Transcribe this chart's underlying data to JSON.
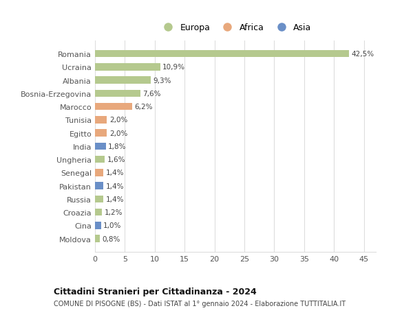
{
  "countries": [
    "Romania",
    "Ucraina",
    "Albania",
    "Bosnia-Erzegovina",
    "Marocco",
    "Tunisia",
    "Egitto",
    "India",
    "Ungheria",
    "Senegal",
    "Pakistan",
    "Russia",
    "Croazia",
    "Cina",
    "Moldova"
  ],
  "values": [
    42.5,
    10.9,
    9.3,
    7.6,
    6.2,
    2.0,
    2.0,
    1.8,
    1.6,
    1.4,
    1.4,
    1.4,
    1.2,
    1.0,
    0.8
  ],
  "labels": [
    "42,5%",
    "10,9%",
    "9,3%",
    "7,6%",
    "6,2%",
    "2,0%",
    "2,0%",
    "1,8%",
    "1,6%",
    "1,4%",
    "1,4%",
    "1,4%",
    "1,2%",
    "1,0%",
    "0,8%"
  ],
  "continents": [
    "Europa",
    "Europa",
    "Europa",
    "Europa",
    "Africa",
    "Africa",
    "Africa",
    "Asia",
    "Europa",
    "Africa",
    "Asia",
    "Europa",
    "Europa",
    "Asia",
    "Europa"
  ],
  "colors": {
    "Europa": "#b5c98e",
    "Africa": "#e8a87c",
    "Asia": "#6a8fc7"
  },
  "xlim": [
    0,
    47
  ],
  "xticks": [
    0,
    5,
    10,
    15,
    20,
    25,
    30,
    35,
    40,
    45
  ],
  "title": "Cittadini Stranieri per Cittadinanza - 2024",
  "subtitle": "COMUNE DI PISOGNE (BS) - Dati ISTAT al 1° gennaio 2024 - Elaborazione TUTTITALIA.IT",
  "background_color": "#ffffff",
  "grid_color": "#dddddd"
}
